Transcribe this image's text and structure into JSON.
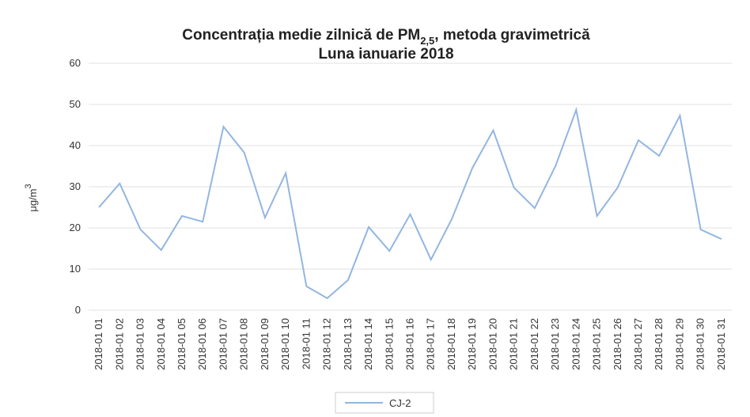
{
  "chart_data": {
    "type": "line",
    "title_parts": [
      "Concentrația medie zilnică de PM",
      "2,5",
      ", metoda gravimetrică"
    ],
    "subtitle": "Luna ianuarie 2018",
    "ylabel_parts": [
      "μg/m",
      "3"
    ],
    "categories": [
      "2018-01 01",
      "2018-01 02",
      "2018-01 03",
      "2018-01 04",
      "2018-01 05",
      "2018-01 06",
      "2018-01 07",
      "2018-01 08",
      "2018-01 09",
      "2018-01 10",
      "2018-01 11",
      "2018-01 12",
      "2018-01 13",
      "2018-01 14",
      "2018-01 15",
      "2018-01 16",
      "2018-01 17",
      "2018-01 18",
      "2018-01 19",
      "2018-01 20",
      "2018-01 21",
      "2018-01 22",
      "2018-01 23",
      "2018-01 24",
      "2018-01 25",
      "2018-01 26",
      "2018-01 27",
      "2018-01 28",
      "2018-01 29",
      "2018-01 30",
      "2018-01 31"
    ],
    "series": [
      {
        "name": "CJ-2",
        "color": "#93b6e0",
        "values": [
          25,
          30.8,
          19.6,
          14.6,
          22.9,
          21.5,
          44.6,
          38.3,
          22.5,
          33.3,
          5.8,
          2.9,
          7.3,
          20.2,
          14.4,
          23.3,
          12.3,
          22.1,
          34.6,
          43.7,
          29.8,
          24.8,
          35,
          48.7,
          22.9,
          29.8,
          41.3,
          37.5,
          47.3,
          19.6,
          17.3
        ]
      }
    ],
    "ylim": [
      0,
      60
    ],
    "yticks": [
      0,
      10,
      20,
      30,
      40,
      50,
      60
    ],
    "grid": true,
    "legend": "bottom"
  }
}
